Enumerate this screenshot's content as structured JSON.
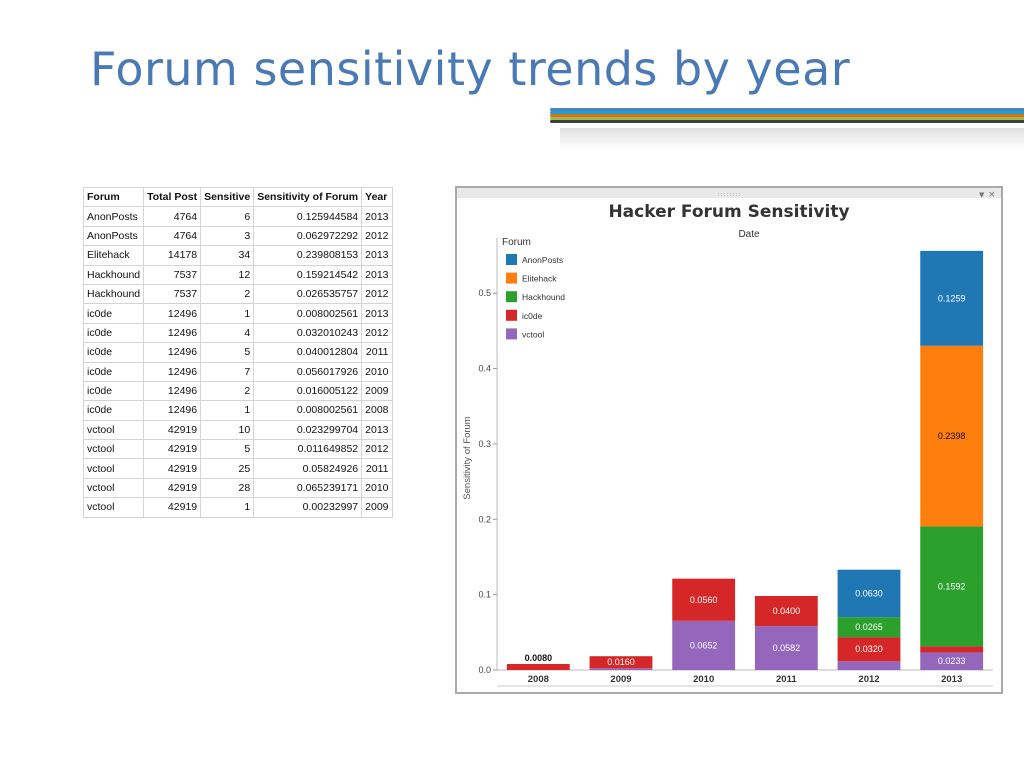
{
  "slide": {
    "title": "Forum sensitivity trends by year"
  },
  "colors": {
    "title": "#4a7ab5",
    "stripes": [
      "#4f81bd",
      "#1aa0d8",
      "#e36c0a",
      "#9bbb59",
      "#404040"
    ]
  },
  "table": {
    "headers": [
      "Forum",
      "Total Post",
      "Sensitive",
      "Sensitivity of Forum",
      "Year"
    ],
    "rows": [
      [
        "AnonPosts",
        "4764",
        "6",
        "0.125944584",
        "2013"
      ],
      [
        "AnonPosts",
        "4764",
        "3",
        "0.062972292",
        "2012"
      ],
      [
        "Elitehack",
        "14178",
        "34",
        "0.239808153",
        "2013"
      ],
      [
        "Hackhound",
        "7537",
        "12",
        "0.159214542",
        "2013"
      ],
      [
        "Hackhound",
        "7537",
        "2",
        "0.026535757",
        "2012"
      ],
      [
        "ic0de",
        "12496",
        "1",
        "0.008002561",
        "2013"
      ],
      [
        "ic0de",
        "12496",
        "4",
        "0.032010243",
        "2012"
      ],
      [
        "ic0de",
        "12496",
        "5",
        "0.040012804",
        "2011"
      ],
      [
        "ic0de",
        "12496",
        "7",
        "0.056017926",
        "2010"
      ],
      [
        "ic0de",
        "12496",
        "2",
        "0.016005122",
        "2009"
      ],
      [
        "ic0de",
        "12496",
        "1",
        "0.008002561",
        "2008"
      ],
      [
        "vctool",
        "42919",
        "10",
        "0.023299704",
        "2013"
      ],
      [
        "vctool",
        "42919",
        "5",
        "0.011649852",
        "2012"
      ],
      [
        "vctool",
        "42919",
        "25",
        "0.05824926",
        "2011"
      ],
      [
        "vctool",
        "42919",
        "28",
        "0.065239171",
        "2010"
      ],
      [
        "vctool",
        "42919",
        "1",
        "0.00232997",
        "2009"
      ]
    ]
  },
  "chart_data": {
    "type": "bar",
    "stacked": true,
    "title": "Hacker Forum Sensitivity",
    "xlabel": "Date",
    "ylabel": "Sensitivity of Forum",
    "ylim": [
      0,
      0.55
    ],
    "yticks": [
      "0.0",
      "0.1",
      "0.2",
      "0.3",
      "0.4",
      "0.5"
    ],
    "categories": [
      "2008",
      "2009",
      "2010",
      "2011",
      "2012",
      "2013"
    ],
    "legend_title": "Forum",
    "legend_position": "top-left",
    "grid": false,
    "series": [
      {
        "name": "vctool",
        "color": "#9467bd",
        "values": [
          0,
          0.0023,
          0.0652,
          0.0582,
          0.0116,
          0.0233
        ],
        "labels": [
          "",
          "",
          "0.0652",
          "0.0582",
          "",
          "0.0233"
        ]
      },
      {
        "name": "ic0de",
        "color": "#d62728",
        "values": [
          0.008,
          0.016,
          0.056,
          0.04,
          0.032,
          0.008
        ],
        "labels": [
          "0.0080",
          "0.0160",
          "0.0560",
          "0.0400",
          "0.0320",
          ""
        ]
      },
      {
        "name": "Hackhound",
        "color": "#2ca02c",
        "values": [
          0,
          0,
          0,
          0,
          0.0265,
          0.1592
        ],
        "labels": [
          "",
          "",
          "",
          "",
          "0.0265",
          "0.1592"
        ]
      },
      {
        "name": "Elitehack",
        "color": "#ff7f0e",
        "values": [
          0,
          0,
          0,
          0,
          0,
          0.2398
        ],
        "labels": [
          "",
          "",
          "",
          "",
          "",
          "0.2398"
        ]
      },
      {
        "name": "AnonPosts",
        "color": "#1f77b4",
        "values": [
          0,
          0,
          0,
          0,
          0.063,
          0.1259
        ],
        "labels": [
          "",
          "",
          "",
          "",
          "0.0630",
          "0.1259"
        ]
      }
    ],
    "legend_order": [
      "AnonPosts",
      "Elitehack",
      "Hackhound",
      "ic0de",
      "vctool"
    ]
  }
}
